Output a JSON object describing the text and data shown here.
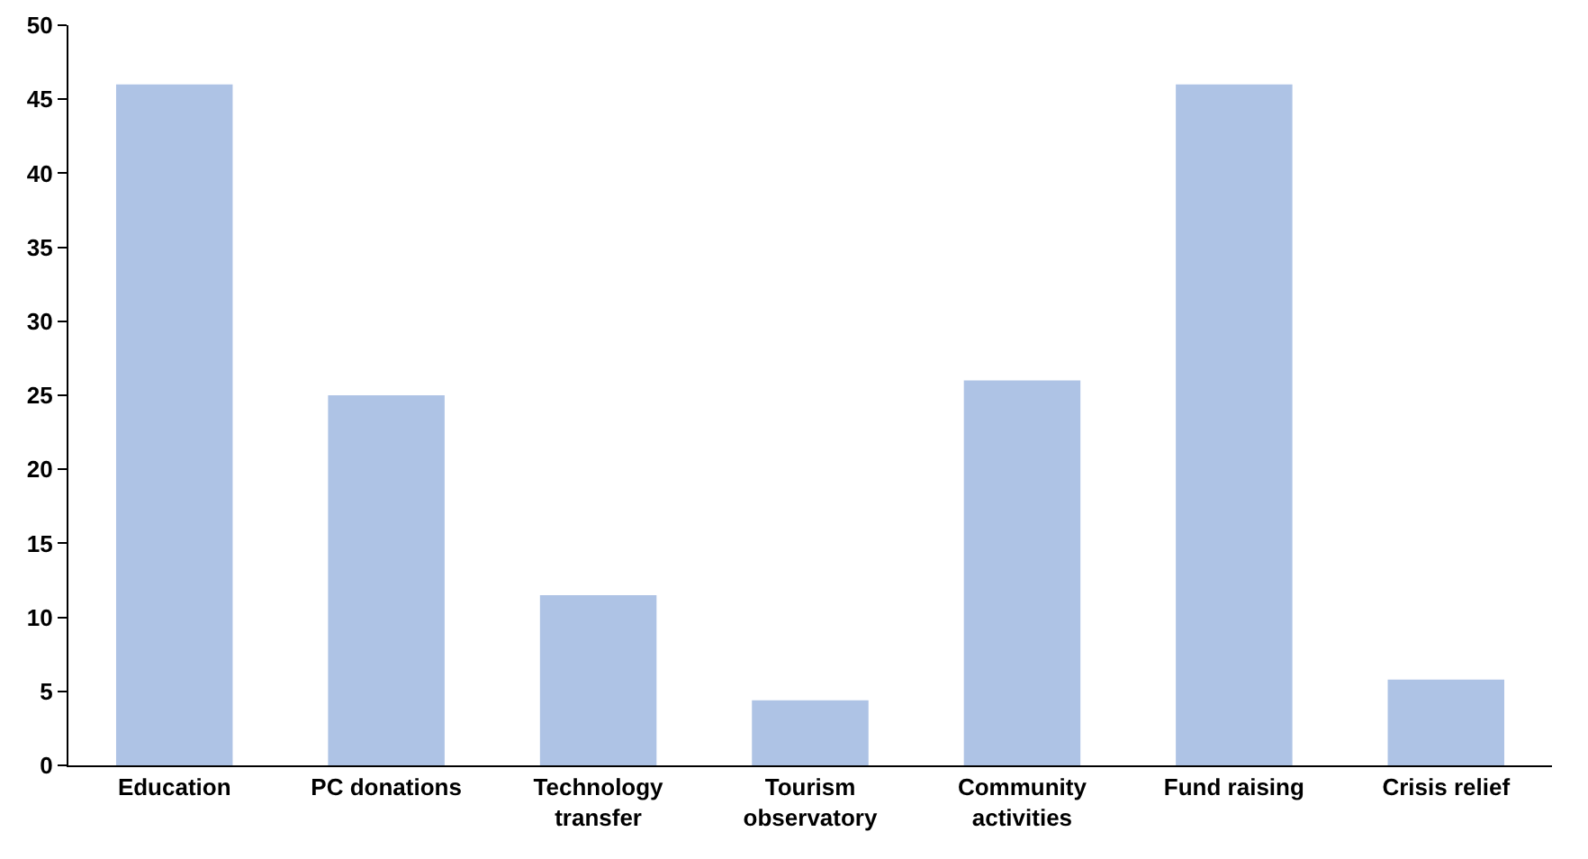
{
  "chart_data": {
    "type": "bar",
    "categories": [
      "Education",
      "PC donations",
      "Technology transfer",
      "Tourism observatory",
      "Community activities",
      "Fund raising",
      "Crisis relief"
    ],
    "values": [
      46,
      25,
      11.5,
      4.4,
      26,
      46,
      5.8
    ],
    "color": "#aec3e5",
    "ylim": [
      0,
      50
    ],
    "yticks": [
      0,
      5,
      10,
      15,
      20,
      25,
      30,
      35,
      40,
      45,
      50
    ],
    "grid": false,
    "legend": false
  }
}
